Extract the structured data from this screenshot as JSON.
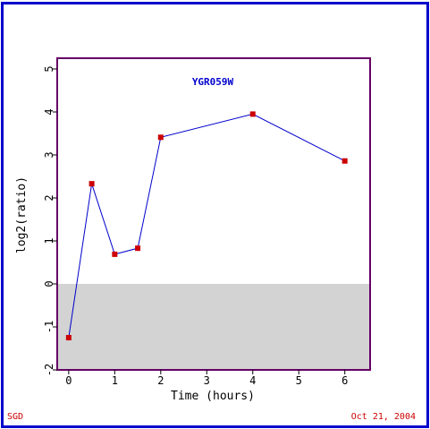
{
  "chart_data": {
    "type": "line",
    "title": "YGR059W",
    "xlabel": "Time (hours)",
    "ylabel": "log2(ratio)",
    "xlim": [
      -0.25,
      6.55
    ],
    "ylim": [
      -2,
      5.25
    ],
    "x_ticks": [
      "0",
      "1",
      "2",
      "3",
      "4",
      "5",
      "6"
    ],
    "y_ticks": [
      "-2",
      "-1",
      "0",
      "1",
      "2",
      "3",
      "4",
      "5"
    ],
    "x_tick_values": [
      0,
      1,
      2,
      3,
      4,
      5,
      6
    ],
    "y_tick_values": [
      -2,
      -1,
      0,
      1,
      2,
      3,
      4,
      5
    ],
    "grid": false,
    "negative_region_shaded": true,
    "series": [
      {
        "x": [
          0,
          0.5,
          1,
          1.5,
          2,
          4,
          6
        ],
        "y": [
          -1.25,
          2.33,
          0.69,
          0.83,
          3.41,
          3.95,
          2.86
        ]
      }
    ]
  },
  "colors": {
    "frame": "#0000cc",
    "plot_border": "#660066",
    "line": "#0000cc",
    "marker": "#cc0000",
    "shade": "#d3d3d3",
    "title": "#0000cc",
    "footer": "#cc0000"
  },
  "footer": {
    "left": "SGD",
    "right": "Oct 21, 2004"
  }
}
